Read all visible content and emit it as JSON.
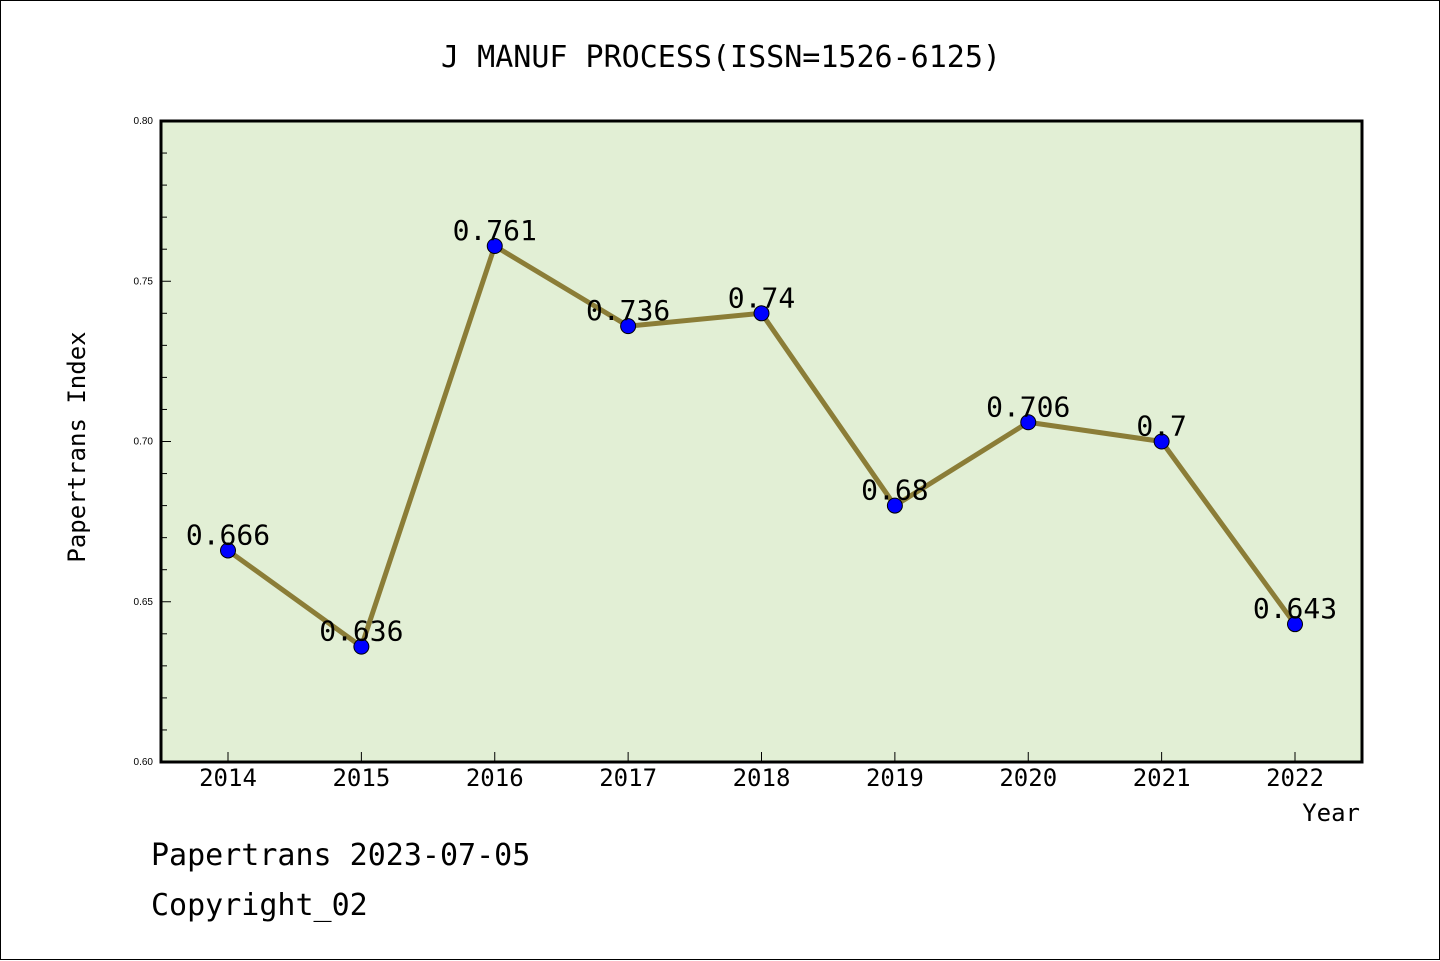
{
  "chart_data": {
    "type": "line",
    "title": "J MANUF PROCESS(ISSN=1526-6125)",
    "xlabel": "Year",
    "ylabel": "Papertrans Index",
    "categories": [
      "2014",
      "2015",
      "2016",
      "2017",
      "2018",
      "2019",
      "2020",
      "2021",
      "2022"
    ],
    "values": [
      0.666,
      0.636,
      0.761,
      0.736,
      0.74,
      0.68,
      0.706,
      0.7,
      0.643
    ],
    "data_labels": [
      "0.666",
      "0.636",
      "0.761",
      "0.736",
      "0.74",
      "0.68",
      "0.706",
      "0.7",
      "0.643"
    ],
    "ylim": [
      0.6,
      0.8
    ],
    "y_major_ticks": [
      0.6,
      0.65,
      0.7,
      0.75,
      0.8
    ],
    "y_tick_labels": [
      "0.60",
      "0.65",
      "0.70",
      "0.75",
      "0.80"
    ],
    "y_minor_step": 0.01,
    "grid": false,
    "colors": {
      "plot_background": "#e2efd5",
      "line": "#8b7d37",
      "marker": "#0000ff",
      "axes": "#000000"
    }
  },
  "footer": {
    "line1": "Papertrans 2023-07-05",
    "line2": "Copyright_02"
  }
}
